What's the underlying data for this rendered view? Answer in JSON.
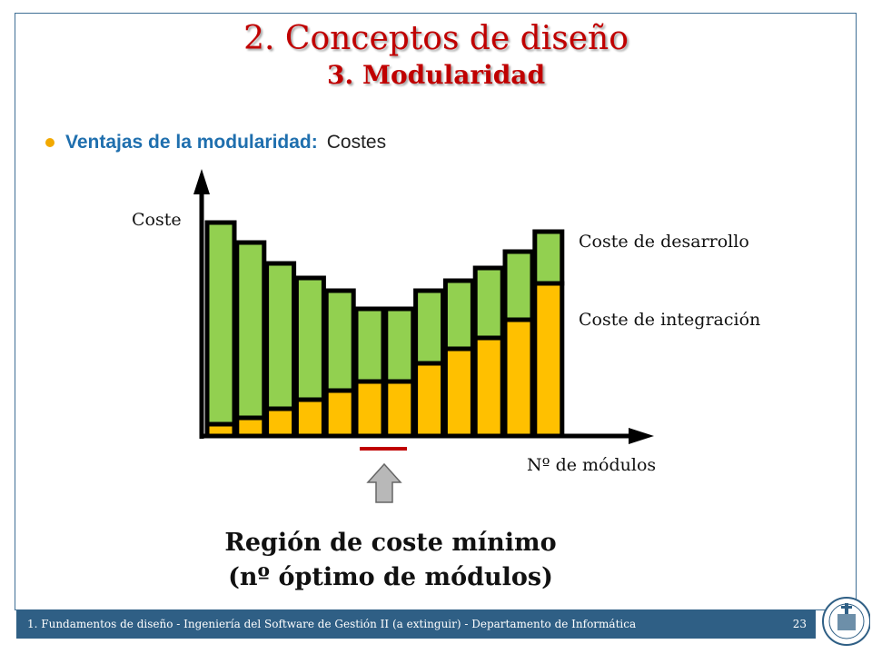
{
  "slide": {
    "title": "2. Conceptos de diseño",
    "subtitle": "3. Modularidad",
    "bullet_label": "Ventajas de la modularidad:",
    "bullet_value": "Costes"
  },
  "chart_data": {
    "type": "bar",
    "stacked": true,
    "ylabel": "Coste",
    "xlabel": "Nº de módulos",
    "series": [
      {
        "name": "Coste de integración",
        "color": "#ffc000",
        "values": [
          13,
          20,
          30,
          40,
          50,
          60,
          60,
          80,
          96,
          108,
          128,
          168
        ]
      },
      {
        "name": "Coste de desarrollo",
        "color": "#92d050",
        "values": [
          222,
          193,
          160,
          134,
          110,
          80,
          80,
          80,
          75,
          77,
          75,
          57
        ]
      }
    ],
    "ylim": [
      0,
      240
    ],
    "highlight_bars": [
      5,
      6
    ]
  },
  "annotation": {
    "line1": "Región de coste mínimo",
    "line2": "(nº óptimo de módulos)",
    "arrow_icon": "up-arrow-icon"
  },
  "footer": {
    "text": "1. Fundamentos de diseño - Ingeniería del Software de Gestión II (a extinguir) - Departamento de Informática",
    "page": "23"
  },
  "colors": {
    "title": "#c00000",
    "bullet_label": "#1f6fae",
    "footer_bg": "#2f5f85",
    "marker_line": "#c00000"
  }
}
